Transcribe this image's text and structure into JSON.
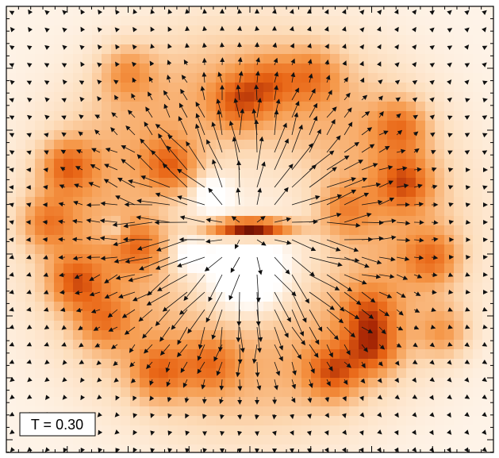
{
  "annotation": {
    "label": "T = 0.30"
  }
}
